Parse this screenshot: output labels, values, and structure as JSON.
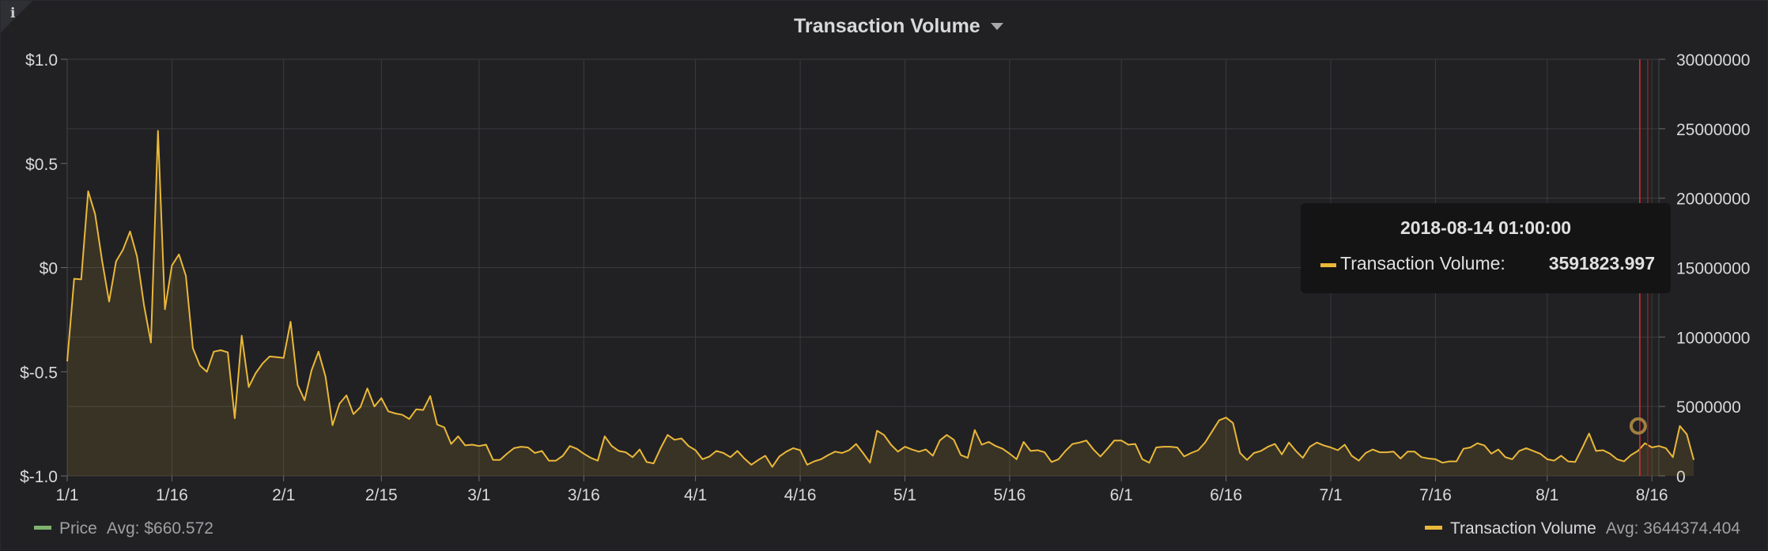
{
  "header": {
    "title": "Transaction Volume",
    "info_icon": "i"
  },
  "colors": {
    "price": "#7eb26d",
    "volume": "#eab839",
    "cursor": "#e02f2f"
  },
  "chart_data": {
    "type": "line",
    "title": "Transaction Volume",
    "x_ticks": [
      "1/1",
      "1/16",
      "2/1",
      "2/15",
      "3/1",
      "3/16",
      "4/1",
      "4/16",
      "5/1",
      "5/16",
      "6/1",
      "6/16",
      "7/1",
      "7/16",
      "8/1",
      "8/16"
    ],
    "y_left_ticks": [
      "$1.0",
      "$0.5",
      "$0",
      "$-0.5",
      "$-1.0"
    ],
    "y_right_ticks": [
      "30000000",
      "25000000",
      "20000000",
      "15000000",
      "10000000",
      "5000000",
      "0"
    ],
    "y_right_range": [
      0,
      30000000
    ],
    "x_range": [
      "2018-01-01",
      "2018-08-17"
    ],
    "grid": true,
    "series": [
      {
        "name": "Transaction Volume",
        "axis": "right",
        "fill": true,
        "start": "2018-01-01",
        "values": [
          8250000,
          14200000,
          14150000,
          20500000,
          18850000,
          15500000,
          12550000,
          15450000,
          16300000,
          17600000,
          15800000,
          12300000,
          9600000,
          24850000,
          12000000,
          15150000,
          15950000,
          14400000,
          9200000,
          7950000,
          7500000,
          8950000,
          9050000,
          8900000,
          4150000,
          10100000,
          6400000,
          7400000,
          8100000,
          8600000,
          8550000,
          8500000,
          11100000,
          6550000,
          5450000,
          7600000,
          8950000,
          7150000,
          3650000,
          5200000,
          5800000,
          4450000,
          4950000,
          6300000,
          5000000,
          5600000,
          4650000,
          4500000,
          4400000,
          4100000,
          4800000,
          4750000,
          5750000,
          3700000,
          3500000,
          2300000,
          2850000,
          2200000,
          2250000,
          2150000,
          2250000,
          1150000,
          1150000,
          1600000,
          2000000,
          2100000,
          2050000,
          1650000,
          1800000,
          1100000,
          1100000,
          1450000,
          2150000,
          1950000,
          1600000,
          1300000,
          1100000,
          2850000,
          2150000,
          1800000,
          1700000,
          1350000,
          1900000,
          1000000,
          900000,
          2000000,
          2950000,
          2600000,
          2700000,
          2150000,
          1850000,
          1200000,
          1400000,
          1800000,
          1650000,
          1350000,
          1800000,
          1250000,
          800000,
          1150000,
          1450000,
          650000,
          1400000,
          1750000,
          2000000,
          1850000,
          800000,
          1050000,
          1200000,
          1500000,
          1750000,
          1650000,
          1850000,
          2300000,
          1650000,
          950000,
          3250000,
          2950000,
          2250000,
          1750000,
          2100000,
          1900000,
          1750000,
          1900000,
          1450000,
          2550000,
          2950000,
          2600000,
          1500000,
          1300000,
          3300000,
          2250000,
          2450000,
          2150000,
          1950000,
          1600000,
          1200000,
          2450000,
          1800000,
          1850000,
          1700000,
          1000000,
          1200000,
          1800000,
          2300000,
          2400000,
          2550000,
          1900000,
          1400000,
          1950000,
          2550000,
          2550000,
          2250000,
          2300000,
          1200000,
          950000,
          2050000,
          2100000,
          2100000,
          2050000,
          1400000,
          1650000,
          1850000,
          2400000,
          3200000,
          4000000,
          4200000,
          3800000,
          1650000,
          1150000,
          1650000,
          1800000,
          2100000,
          2300000,
          1550000,
          2400000,
          1800000,
          1300000,
          2100000,
          2400000,
          2200000,
          2050000,
          1850000,
          2250000,
          1450000,
          1100000,
          1650000,
          1900000,
          1700000,
          1700000,
          1750000,
          1250000,
          1750000,
          1750000,
          1350000,
          1250000,
          1200000,
          950000,
          1050000,
          1050000,
          1950000,
          2050000,
          2350000,
          2200000,
          1600000,
          1900000,
          1350000,
          1200000,
          1800000,
          2000000,
          1800000,
          1600000,
          1200000,
          1100000,
          1450000,
          1050000,
          1000000,
          2000000,
          3050000,
          1800000,
          1850000,
          1600000,
          1200000,
          1050000,
          1500000,
          1800000,
          2350000,
          2050000,
          2150000,
          2000000,
          1350000,
          3591823.997,
          3000000,
          1150000
        ]
      }
    ],
    "cursor": {
      "timestamp": "2018-08-14 01:00:00",
      "value": 3591823.997
    },
    "legend": [
      {
        "name": "Price",
        "avg_label": "Avg: $660.572",
        "color": "#7eb26d"
      },
      {
        "name": "Transaction Volume",
        "avg_label": "Avg: 3644374.404",
        "color": "#eab839"
      }
    ]
  },
  "tooltip": {
    "time": "2018-08-14 01:00:00",
    "series": "Transaction Volume:",
    "value": "3591823.997"
  }
}
